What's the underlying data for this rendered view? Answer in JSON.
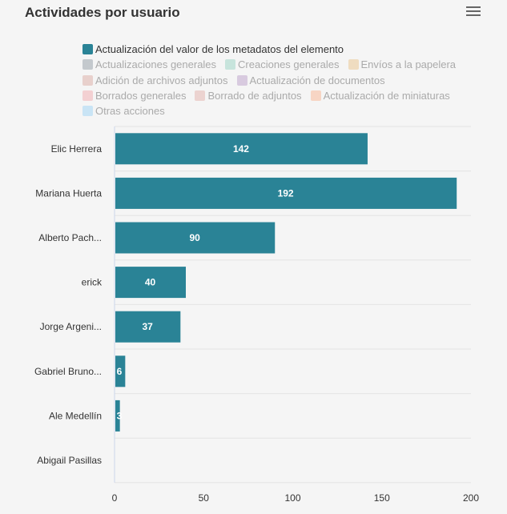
{
  "header": {
    "title": "Actividades por usuario",
    "menu_icon": "hamburger-menu-icon"
  },
  "legend": {
    "rows": [
      [
        {
          "label": "Actualización del valor de los metadatos del elemento",
          "color": "#2a8396",
          "active": true
        }
      ],
      [
        {
          "label": "Actualizaciones generales",
          "color": "#c4c9cd",
          "active": false
        },
        {
          "label": "Creaciones generales",
          "color": "#c7e4dc",
          "active": false
        },
        {
          "label": "Envíos a la papelera",
          "color": "#efdcc0",
          "active": false
        }
      ],
      [
        {
          "label": "Adición de archivos adjuntos",
          "color": "#e8d0cc",
          "active": false
        },
        {
          "label": "Actualización de documentos",
          "color": "#d8cadf",
          "active": false
        }
      ],
      [
        {
          "label": "Borrados generales",
          "color": "#f3d0d2",
          "active": false
        },
        {
          "label": "Borrado de adjuntos",
          "color": "#ecd3d0",
          "active": false
        },
        {
          "label": "Actualización de miniaturas",
          "color": "#f7d5c4",
          "active": false
        }
      ],
      [
        {
          "label": "Otras acciones",
          "color": "#c9e4f5",
          "active": false
        }
      ]
    ]
  },
  "chart_data": {
    "type": "bar",
    "orientation": "horizontal",
    "categories": [
      "Elic Herrera",
      "Mariana Huerta",
      "Alberto Pach...",
      "erick",
      "Jorge Argeni...",
      "Gabriel Bruno...",
      "Ale Medellín",
      "Abigail Pasillas"
    ],
    "series": [
      {
        "name": "Actualización del valor de los metadatos del elemento",
        "color": "#2a8396",
        "values": [
          142,
          192,
          90,
          40,
          37,
          6,
          3,
          0
        ]
      }
    ],
    "xlim": [
      0,
      200
    ],
    "xticks": [
      "0",
      "50",
      "100",
      "150",
      "200"
    ],
    "grid": true
  }
}
